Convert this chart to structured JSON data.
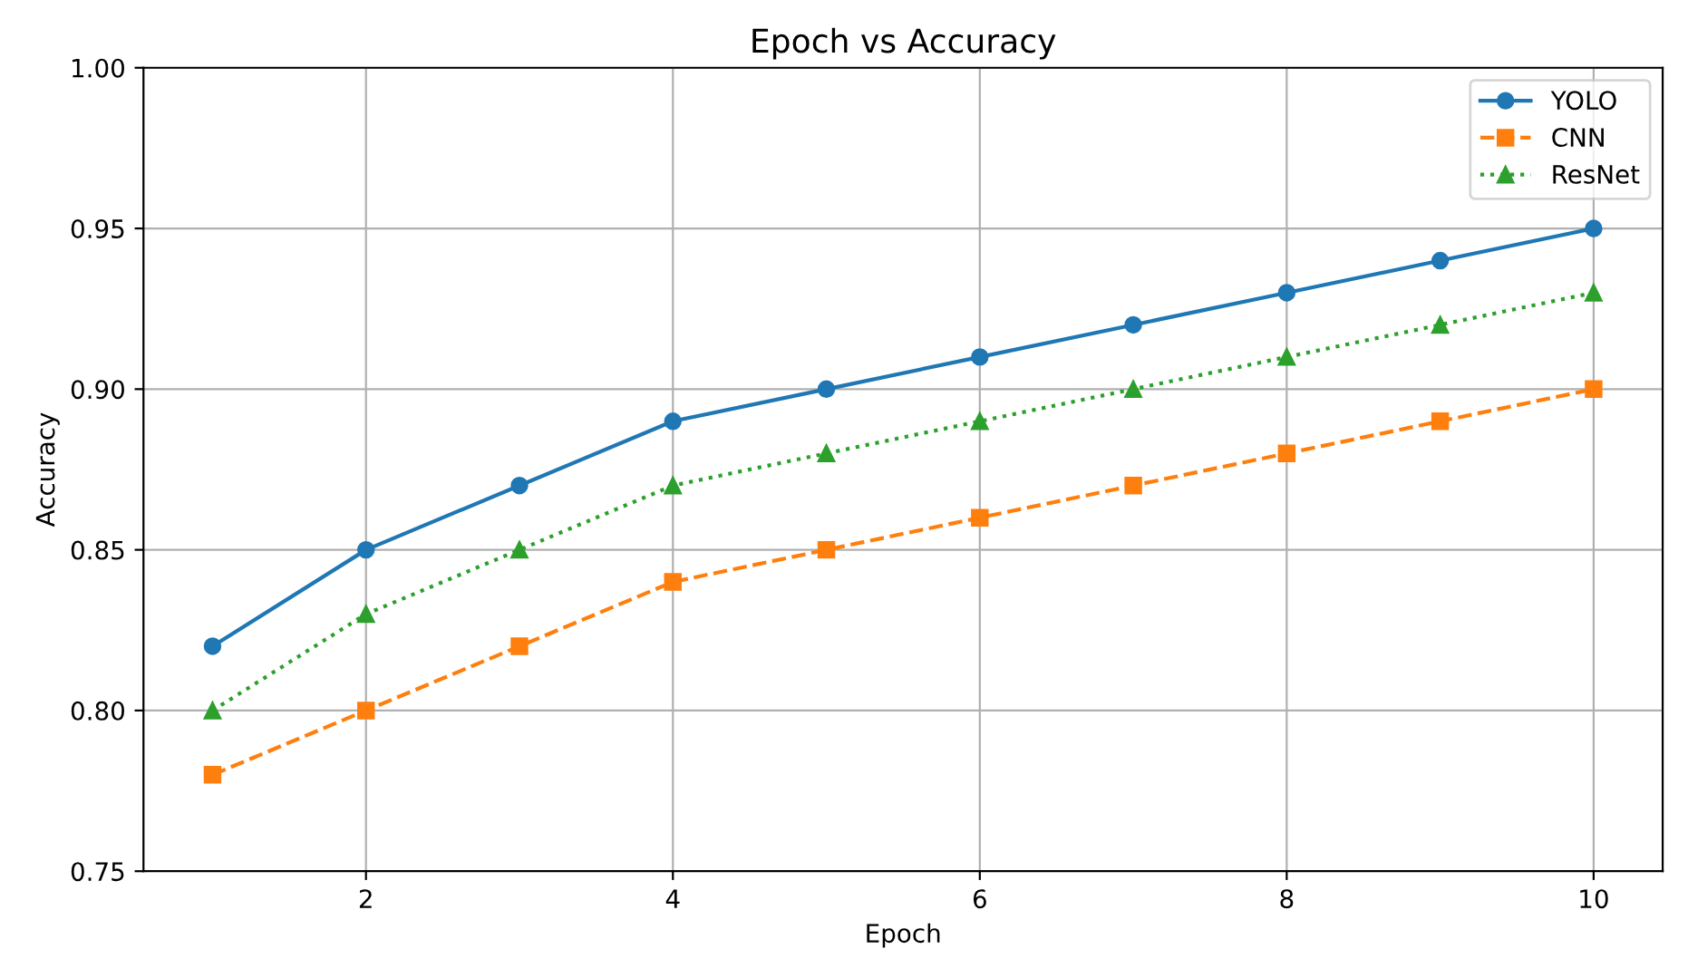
{
  "chart_data": {
    "type": "line",
    "title": "Epoch vs Accuracy",
    "xlabel": "Epoch",
    "ylabel": "Accuracy",
    "x": [
      1,
      2,
      3,
      4,
      5,
      6,
      7,
      8,
      9,
      10
    ],
    "series": [
      {
        "name": "YOLO",
        "color": "#1f77b4",
        "marker": "circle",
        "line_style": "solid",
        "values": [
          0.82,
          0.85,
          0.87,
          0.89,
          0.9,
          0.91,
          0.92,
          0.93,
          0.94,
          0.95
        ]
      },
      {
        "name": "CNN",
        "color": "#ff7f0e",
        "marker": "square",
        "line_style": "dashed",
        "values": [
          0.78,
          0.8,
          0.82,
          0.84,
          0.85,
          0.86,
          0.87,
          0.88,
          0.89,
          0.9
        ]
      },
      {
        "name": "ResNet",
        "color": "#2ca02c",
        "marker": "triangle",
        "line_style": "dotted",
        "values": [
          0.8,
          0.83,
          0.85,
          0.87,
          0.88,
          0.89,
          0.9,
          0.91,
          0.92,
          0.93
        ]
      }
    ],
    "xlim": [
      0.55,
      10.45
    ],
    "xticks": [
      2,
      4,
      6,
      8,
      10
    ],
    "ylim": [
      0.75,
      1.0
    ],
    "yticks": [
      {
        "value": 0.75,
        "label": "0.75"
      },
      {
        "value": 0.8,
        "label": "0.80"
      },
      {
        "value": 0.85,
        "label": "0.85"
      },
      {
        "value": 0.9,
        "label": "0.90"
      },
      {
        "value": 0.95,
        "label": "0.95"
      },
      {
        "value": 1.0,
        "label": "1.00"
      }
    ],
    "grid": true,
    "legend": "top right"
  }
}
